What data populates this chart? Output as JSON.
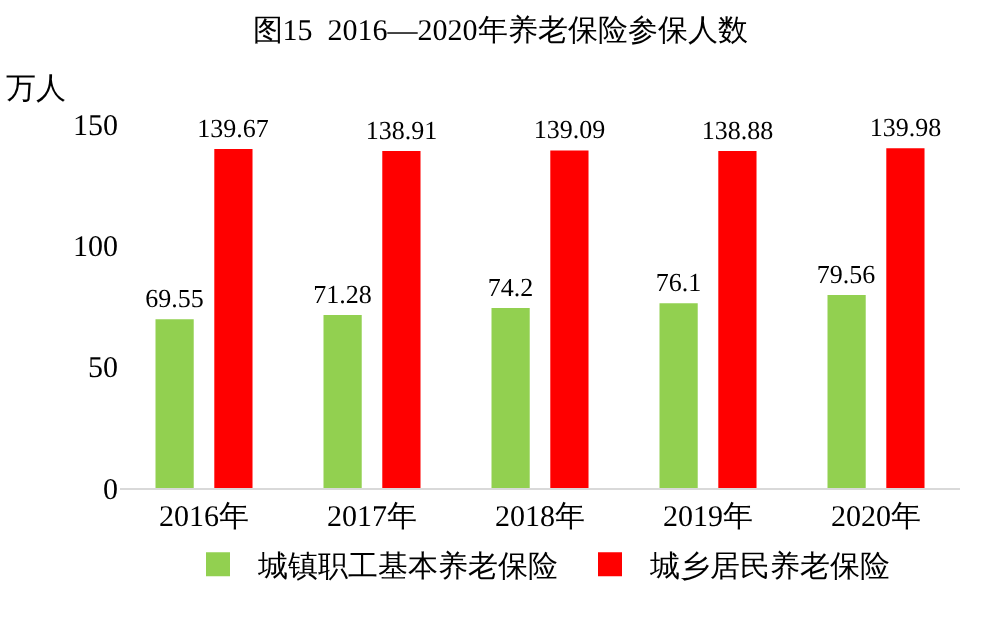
{
  "chart_data": {
    "type": "bar",
    "title": "图15  2016—2020年养老保险参保人数",
    "ylabel": "万人",
    "categories": [
      "2016年",
      "2017年",
      "2018年",
      "2019年",
      "2020年"
    ],
    "series": [
      {
        "name": "城镇职工基本养老保险",
        "color": "#92d050",
        "values": [
          69.55,
          71.28,
          74.2,
          76.1,
          79.56
        ]
      },
      {
        "name": "城乡居民养老保险",
        "color": "#ff0000",
        "values": [
          139.67,
          138.91,
          139.09,
          138.88,
          139.98
        ]
      }
    ],
    "ylim": [
      0,
      150
    ],
    "yticks": [
      0,
      50,
      100,
      150
    ],
    "grid": false,
    "legend": "bottom",
    "data_labels": true
  }
}
